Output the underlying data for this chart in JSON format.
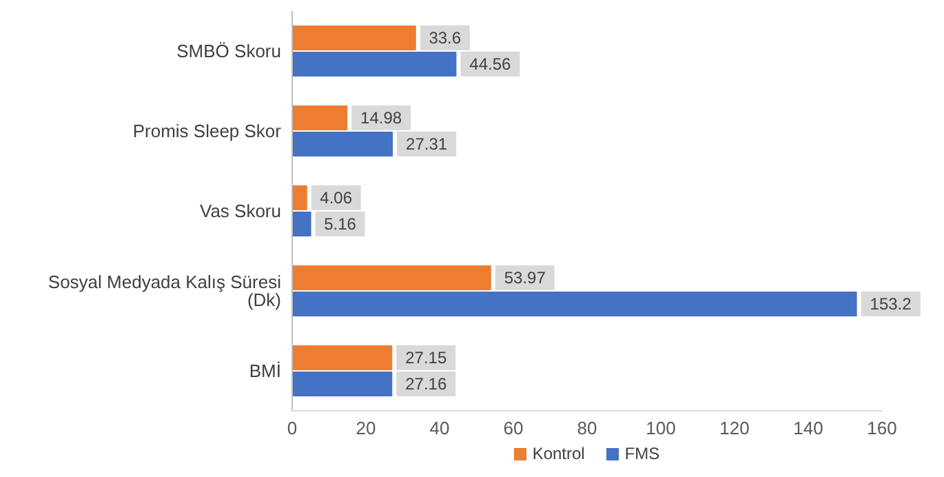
{
  "chart_data": {
    "type": "bar",
    "orientation": "horizontal",
    "categories": [
      "SMBÖ Skoru",
      "Promis Sleep Skor",
      "Vas Skoru",
      "Sosyal Medyada Kalış Süresi (Dk)",
      "BMİ"
    ],
    "series": [
      {
        "name": "Kontrol",
        "color": "#ed7d31",
        "values": [
          33.6,
          14.98,
          4.06,
          53.97,
          27.15
        ]
      },
      {
        "name": "FMS",
        "color": "#4472c4",
        "values": [
          44.56,
          27.31,
          5.16,
          153.2,
          27.16
        ]
      }
    ],
    "xlim": [
      0,
      160
    ],
    "xticks": [
      0,
      20,
      40,
      60,
      80,
      100,
      120,
      140,
      160
    ],
    "data_labels": true,
    "legend": "bottom",
    "grid": false
  }
}
